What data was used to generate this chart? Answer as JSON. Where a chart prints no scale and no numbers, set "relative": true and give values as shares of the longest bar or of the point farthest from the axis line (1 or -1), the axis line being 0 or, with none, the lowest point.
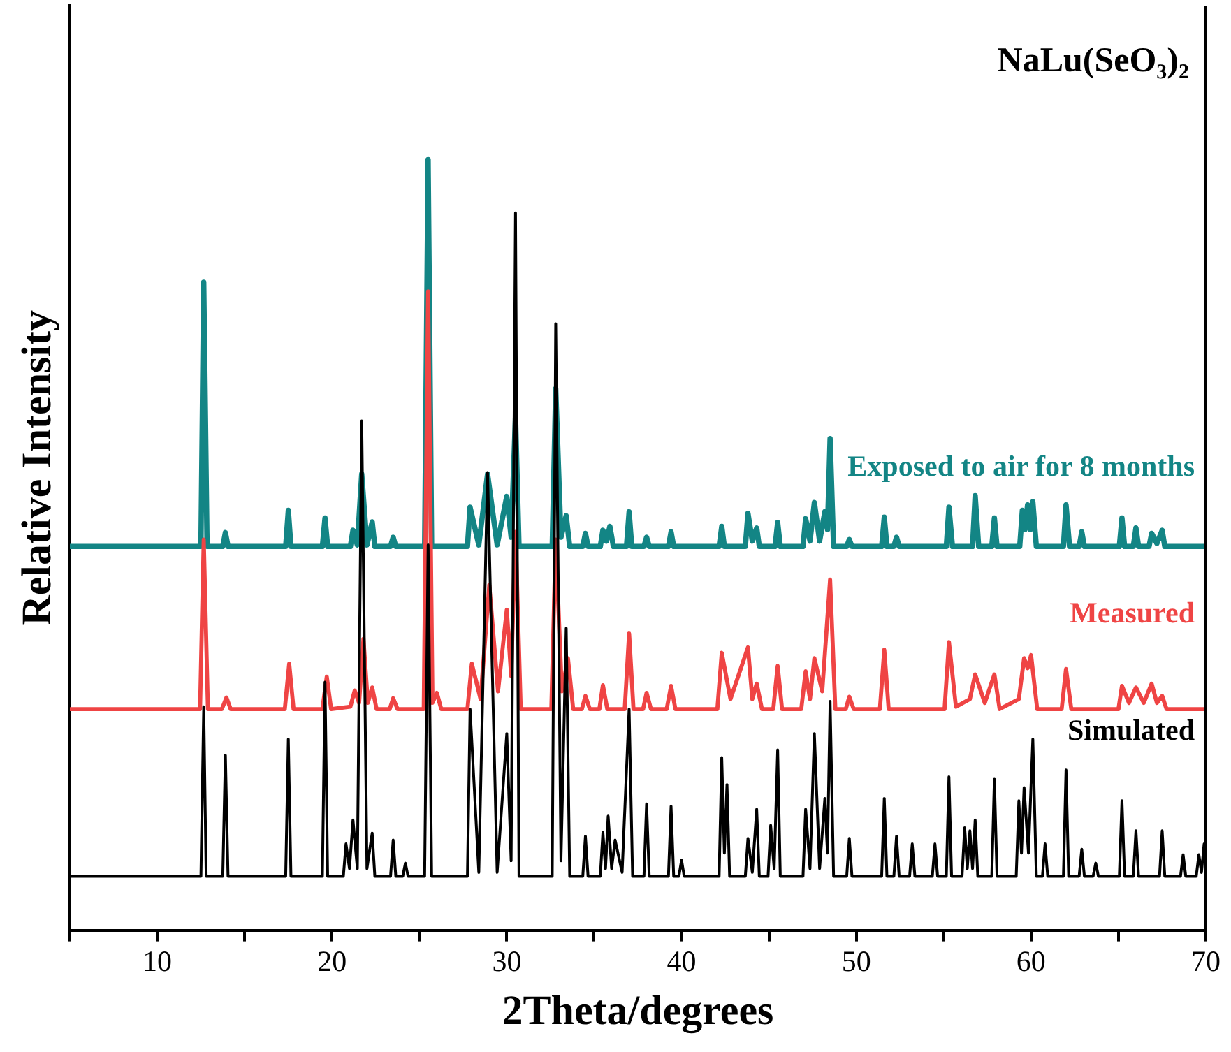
{
  "chart_data": {
    "type": "line",
    "title": "NaLu(SeO₃)₂",
    "xlabel": "2Theta/degrees",
    "ylabel": "Relative Intensity",
    "relative": true,
    "xlim": [
      5,
      70
    ],
    "xticks": [
      {
        "value": 5,
        "label": null
      },
      10,
      {
        "value": 15,
        "label": null
      },
      20,
      {
        "value": 25,
        "label": null
      },
      30,
      {
        "value": 35,
        "label": null
      },
      40,
      {
        "value": 45,
        "label": null
      },
      50,
      {
        "value": 55,
        "label": null
      },
      60,
      {
        "value": 65,
        "label": null
      },
      70
    ],
    "grid": false,
    "legend": false,
    "marker": "none",
    "line_style": "solid",
    "series": [
      {
        "name": "Simulated",
        "color": "#000000",
        "x": [
          5,
          12.5,
          12.66,
          12.8,
          13.75,
          13.9,
          14.05,
          17.35,
          17.5,
          17.65,
          19.45,
          19.6,
          19.75,
          20.65,
          20.8,
          21.0,
          21.2,
          21.45,
          21.7,
          22.0,
          22.3,
          22.45,
          23.35,
          23.5,
          23.65,
          24.05,
          24.2,
          24.35,
          25.3,
          25.5,
          25.7,
          27.75,
          27.9,
          28.4,
          28.9,
          29.45,
          30.0,
          30.25,
          30.5,
          30.7,
          32.6,
          32.8,
          33.1,
          33.4,
          33.6,
          34.35,
          34.5,
          34.65,
          35.35,
          35.5,
          35.65,
          35.8,
          36.0,
          36.2,
          36.6,
          37.0,
          37.2,
          37.85,
          38.0,
          38.15,
          39.25,
          39.4,
          39.55,
          39.85,
          40.0,
          40.15,
          42.15,
          42.3,
          42.45,
          42.6,
          42.75,
          43.65,
          43.8,
          44.05,
          44.3,
          44.45,
          44.95,
          45.1,
          45.3,
          45.5,
          45.65,
          46.95,
          47.1,
          47.35,
          47.6,
          47.9,
          48.2,
          48.35,
          48.5,
          48.7,
          49.45,
          49.6,
          49.75,
          51.45,
          51.6,
          51.75,
          52.15,
          52.3,
          52.45,
          53.05,
          53.2,
          53.35,
          54.35,
          54.5,
          54.65,
          55.15,
          55.3,
          55.45,
          56.05,
          56.2,
          56.35,
          56.5,
          56.65,
          56.8,
          56.95,
          57.75,
          57.9,
          58.05,
          59.15,
          59.3,
          59.45,
          59.6,
          59.85,
          60.1,
          60.3,
          60.65,
          60.8,
          60.95,
          61.85,
          62.0,
          62.15,
          62.75,
          62.9,
          63.05,
          63.55,
          63.7,
          63.85,
          65.05,
          65.2,
          65.35,
          65.85,
          66.0,
          66.15,
          67.35,
          67.5,
          67.65,
          68.55,
          68.7,
          68.85,
          69.45,
          69.6,
          69.75,
          69.9,
          70
        ],
        "values": [
          0.07,
          0.07,
          0.29,
          0.07,
          0.07,
          0.227,
          0.07,
          0.07,
          0.248,
          0.07,
          0.07,
          0.322,
          0.07,
          0.07,
          0.112,
          0.08,
          0.143,
          0.08,
          0.661,
          0.08,
          0.126,
          0.07,
          0.07,
          0.117,
          0.07,
          0.07,
          0.087,
          0.07,
          0.07,
          0.5,
          0.07,
          0.07,
          0.287,
          0.075,
          0.594,
          0.075,
          0.255,
          0.09,
          0.931,
          0.07,
          0.07,
          0.787,
          0.09,
          0.392,
          0.07,
          0.07,
          0.122,
          0.07,
          0.07,
          0.127,
          0.08,
          0.148,
          0.08,
          0.117,
          0.075,
          0.287,
          0.07,
          0.07,
          0.164,
          0.07,
          0.07,
          0.161,
          0.07,
          0.07,
          0.091,
          0.07,
          0.07,
          0.224,
          0.1,
          0.189,
          0.07,
          0.07,
          0.119,
          0.075,
          0.157,
          0.07,
          0.07,
          0.136,
          0.08,
          0.234,
          0.07,
          0.07,
          0.157,
          0.08,
          0.255,
          0.08,
          0.171,
          0.1,
          0.297,
          0.07,
          0.07,
          0.119,
          0.07,
          0.07,
          0.171,
          0.07,
          0.07,
          0.122,
          0.07,
          0.07,
          0.112,
          0.07,
          0.07,
          0.112,
          0.07,
          0.07,
          0.199,
          0.07,
          0.07,
          0.133,
          0.08,
          0.129,
          0.08,
          0.143,
          0.07,
          0.07,
          0.196,
          0.07,
          0.07,
          0.168,
          0.1,
          0.185,
          0.1,
          0.248,
          0.07,
          0.07,
          0.112,
          0.07,
          0.07,
          0.208,
          0.07,
          0.07,
          0.105,
          0.07,
          0.07,
          0.087,
          0.07,
          0.07,
          0.168,
          0.07,
          0.07,
          0.129,
          0.07,
          0.07,
          0.129,
          0.07,
          0.07,
          0.098,
          0.07,
          0.07,
          0.098,
          0.075,
          0.112,
          0.07
        ]
      },
      {
        "name": "Measured",
        "color": "#ef4444",
        "x": [
          5,
          12.45,
          12.66,
          12.9,
          13.7,
          13.96,
          14.2,
          17.3,
          17.55,
          17.8,
          19.45,
          19.7,
          19.95,
          21.05,
          21.3,
          21.55,
          21.8,
          22.05,
          22.3,
          22.55,
          23.3,
          23.5,
          23.75,
          25.25,
          25.5,
          25.75,
          26.0,
          26.25,
          27.75,
          28.0,
          28.5,
          29.0,
          29.5,
          30.0,
          30.25,
          30.5,
          30.8,
          32.55,
          32.8,
          33.15,
          33.5,
          33.8,
          34.3,
          34.5,
          34.75,
          35.3,
          35.5,
          35.75,
          36.75,
          37.0,
          37.25,
          37.8,
          38.0,
          38.25,
          39.15,
          39.4,
          39.65,
          42.05,
          42.3,
          42.8,
          43.8,
          44.05,
          44.3,
          44.6,
          45.25,
          45.5,
          45.75,
          46.85,
          47.1,
          47.35,
          47.6,
          48.05,
          48.5,
          48.8,
          49.4,
          49.6,
          49.85,
          51.35,
          51.6,
          51.85,
          55.05,
          55.3,
          55.7,
          56.5,
          56.8,
          57.35,
          57.9,
          58.2,
          59.3,
          59.6,
          59.8,
          60.0,
          60.35,
          61.75,
          62.0,
          62.3,
          65.0,
          65.2,
          65.6,
          66.0,
          66.45,
          66.9,
          67.2,
          67.5,
          67.75,
          70
        ],
        "values": [
          0.287,
          0.287,
          0.507,
          0.287,
          0.287,
          0.302,
          0.287,
          0.287,
          0.346,
          0.287,
          0.287,
          0.329,
          0.287,
          0.29,
          0.311,
          0.295,
          0.378,
          0.295,
          0.315,
          0.287,
          0.287,
          0.301,
          0.287,
          0.287,
          0.829,
          0.295,
          0.308,
          0.287,
          0.287,
          0.346,
          0.3,
          0.448,
          0.31,
          0.416,
          0.33,
          0.517,
          0.287,
          0.287,
          0.507,
          0.31,
          0.353,
          0.287,
          0.287,
          0.304,
          0.287,
          0.287,
          0.318,
          0.287,
          0.287,
          0.385,
          0.287,
          0.287,
          0.308,
          0.287,
          0.287,
          0.317,
          0.287,
          0.287,
          0.36,
          0.3,
          0.367,
          0.3,
          0.32,
          0.287,
          0.287,
          0.343,
          0.287,
          0.287,
          0.336,
          0.3,
          0.353,
          0.31,
          0.455,
          0.287,
          0.287,
          0.303,
          0.287,
          0.287,
          0.364,
          0.287,
          0.287,
          0.374,
          0.29,
          0.3,
          0.332,
          0.295,
          0.332,
          0.287,
          0.3,
          0.353,
          0.34,
          0.357,
          0.287,
          0.287,
          0.339,
          0.287,
          0.287,
          0.317,
          0.295,
          0.315,
          0.295,
          0.32,
          0.295,
          0.304,
          0.287,
          0.287
        ]
      },
      {
        "name": "Exposed to air for 8 months",
        "color": "#138585",
        "x": [
          5,
          12.5,
          12.66,
          12.85,
          13.75,
          13.9,
          14.05,
          17.35,
          17.5,
          17.65,
          19.45,
          19.6,
          19.75,
          21.05,
          21.2,
          21.45,
          21.7,
          22.0,
          22.3,
          22.45,
          23.35,
          23.5,
          23.65,
          25.3,
          25.5,
          25.7,
          27.75,
          27.9,
          28.4,
          28.9,
          29.45,
          30.0,
          30.25,
          30.5,
          30.7,
          32.6,
          32.8,
          33.1,
          33.4,
          33.6,
          34.35,
          34.5,
          34.65,
          35.35,
          35.5,
          35.7,
          35.9,
          36.1,
          36.85,
          37.0,
          37.15,
          37.85,
          38.0,
          38.15,
          39.25,
          39.4,
          39.55,
          42.15,
          42.3,
          42.45,
          43.65,
          43.8,
          44.05,
          44.3,
          44.45,
          45.35,
          45.5,
          45.65,
          46.95,
          47.1,
          47.35,
          47.6,
          47.9,
          48.2,
          48.35,
          48.5,
          48.7,
          49.45,
          49.6,
          49.75,
          51.45,
          51.6,
          51.75,
          52.15,
          52.3,
          52.45,
          55.15,
          55.3,
          55.5,
          56.65,
          56.8,
          57.0,
          57.75,
          57.9,
          58.05,
          59.35,
          59.5,
          59.65,
          59.8,
          59.95,
          60.1,
          60.3,
          61.85,
          62.0,
          62.2,
          62.75,
          62.9,
          63.05,
          65.05,
          65.2,
          65.35,
          65.85,
          66.0,
          66.15,
          66.75,
          66.9,
          67.2,
          67.5,
          67.65,
          70
        ],
        "values": [
          0.498,
          0.498,
          0.841,
          0.498,
          0.498,
          0.516,
          0.498,
          0.498,
          0.545,
          0.498,
          0.498,
          0.535,
          0.498,
          0.498,
          0.519,
          0.5,
          0.592,
          0.5,
          0.53,
          0.498,
          0.498,
          0.51,
          0.498,
          0.498,
          1.0,
          0.498,
          0.498,
          0.549,
          0.5,
          0.592,
          0.5,
          0.563,
          0.51,
          0.668,
          0.498,
          0.498,
          0.703,
          0.51,
          0.538,
          0.498,
          0.498,
          0.515,
          0.498,
          0.498,
          0.519,
          0.505,
          0.524,
          0.498,
          0.498,
          0.543,
          0.498,
          0.498,
          0.51,
          0.498,
          0.498,
          0.517,
          0.498,
          0.498,
          0.524,
          0.498,
          0.498,
          0.541,
          0.505,
          0.522,
          0.498,
          0.498,
          0.529,
          0.498,
          0.498,
          0.534,
          0.505,
          0.555,
          0.505,
          0.543,
          0.52,
          0.638,
          0.498,
          0.498,
          0.507,
          0.498,
          0.498,
          0.536,
          0.498,
          0.498,
          0.51,
          0.498,
          0.498,
          0.549,
          0.498,
          0.498,
          0.564,
          0.498,
          0.498,
          0.535,
          0.498,
          0.498,
          0.545,
          0.52,
          0.552,
          0.52,
          0.556,
          0.498,
          0.498,
          0.552,
          0.498,
          0.498,
          0.517,
          0.498,
          0.498,
          0.535,
          0.498,
          0.498,
          0.522,
          0.498,
          0.498,
          0.515,
          0.502,
          0.519,
          0.498,
          0.498
        ]
      }
    ]
  }
}
